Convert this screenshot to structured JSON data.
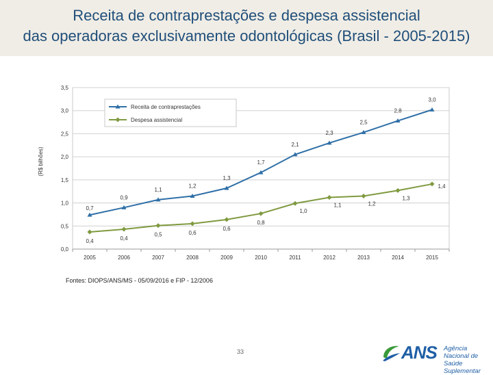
{
  "header": {
    "title_line1": "Receita de contraprestações e despesa assistencial",
    "title_line2": "das operadoras exclusivamente odontológicas (Brasil - 2005-2015)"
  },
  "chart_data": {
    "type": "line",
    "title": "Receita de contraprestações e despesa assistencial das operadoras exclusivamente odontológicas (Brasil - 2005-2015)",
    "xlabel": "",
    "ylabel": "(R$ bilhões)",
    "categories": [
      "2005",
      "2006",
      "2007",
      "2008",
      "2009",
      "2010",
      "2011",
      "2012",
      "2013",
      "2014",
      "2015"
    ],
    "ylim": [
      0,
      3.5
    ],
    "yticks": [
      "0,0",
      "0,5",
      "1,0",
      "1,5",
      "2,0",
      "2,5",
      "3,0",
      "3,5"
    ],
    "grid": true,
    "legend_position": "top-left",
    "series": [
      {
        "name": "Receita de contraprestações",
        "color": "#2e6fa7",
        "marker": "triangle",
        "values": [
          0.74,
          0.9,
          1.07,
          1.15,
          1.32,
          1.66,
          2.05,
          2.3,
          2.53,
          2.78,
          3.02
        ],
        "labels": [
          "0,7",
          "0,9",
          "1,1",
          "1,2",
          "1,3",
          "1,7",
          "2,1",
          "2,3",
          "2,5",
          "2,8",
          "3,0"
        ]
      },
      {
        "name": "Despesa assistencial",
        "color": "#7f9a3f",
        "marker": "diamond",
        "values": [
          0.37,
          0.43,
          0.51,
          0.55,
          0.64,
          0.77,
          0.99,
          1.12,
          1.15,
          1.27,
          1.41
        ],
        "labels": [
          "0,4",
          "0,4",
          "0,5",
          "0,6",
          "0,6",
          "0,8",
          "1,0",
          "1,1",
          "1,2",
          "1,3",
          "1,4"
        ]
      }
    ]
  },
  "footer": {
    "source": "Fontes: DIOPS/ANS/MS - 05/09/2016 e FIP - 12/2006",
    "page_number": "33",
    "logo_text": "ANS",
    "logo_sub1": "Agência Nacional de",
    "logo_sub2": "Saúde Suplementar"
  }
}
